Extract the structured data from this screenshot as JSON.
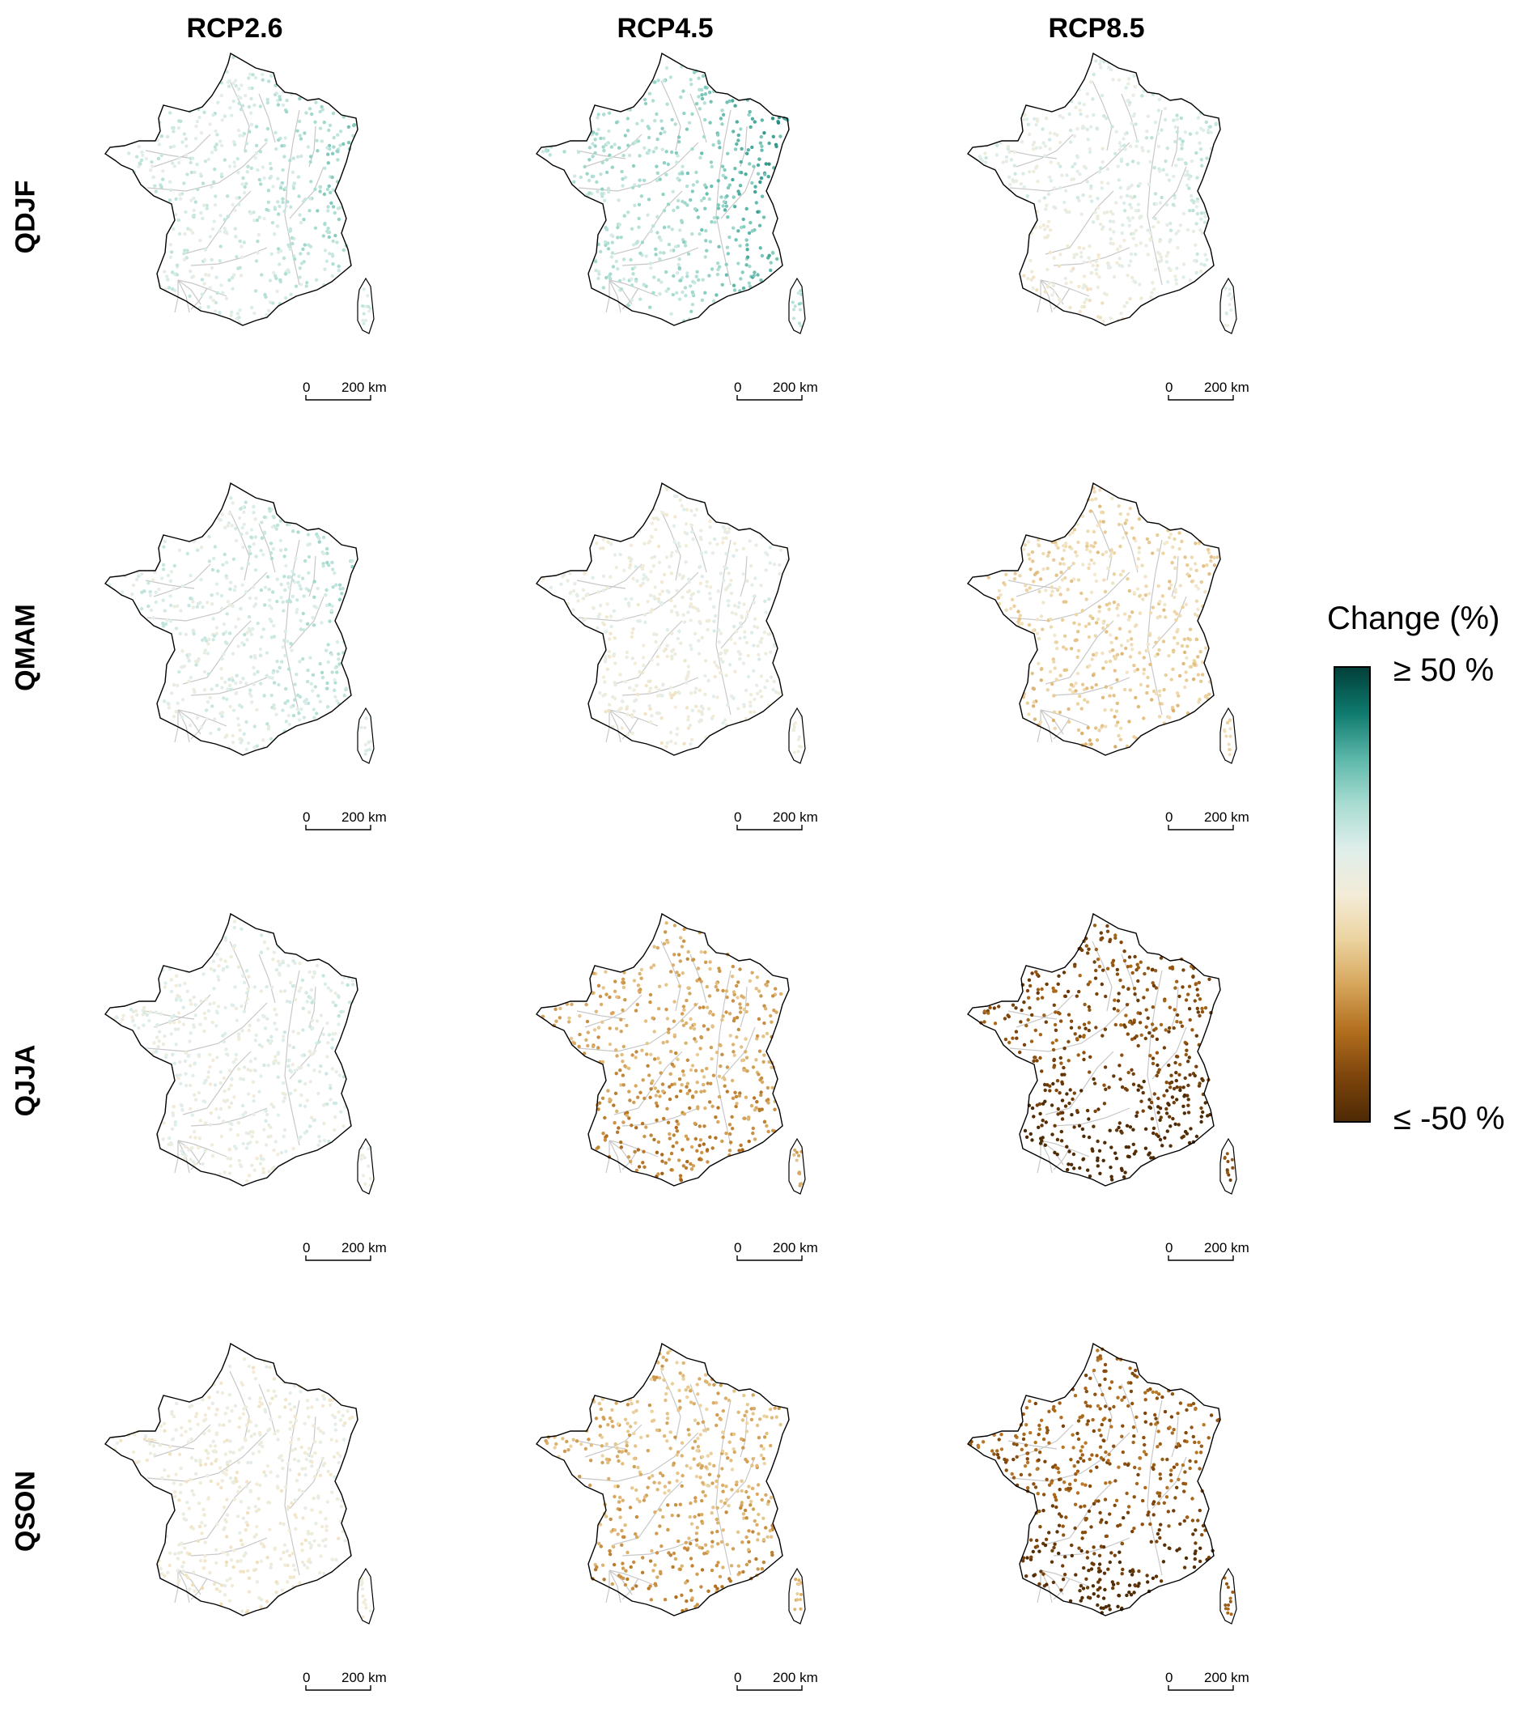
{
  "columns": [
    {
      "label": "RCP2.6"
    },
    {
      "label": "RCP4.5"
    },
    {
      "label": "RCP8.5"
    }
  ],
  "rows": [
    {
      "label": "QDJF"
    },
    {
      "label": "QMAM"
    },
    {
      "label": "QJJA"
    },
    {
      "label": "QSON"
    }
  ],
  "scale_bar": {
    "zero": "0",
    "distance": "200 km"
  },
  "legend": {
    "title": "Change (%)",
    "max_label": "≥ 50 %",
    "min_label": "≤ -50 %",
    "colors_top_to_bottom": [
      "#01403a",
      "#0f7a6e",
      "#5bb7a9",
      "#a8dcd1",
      "#dfeeeb",
      "#f3ecd8",
      "#ecd3a0",
      "#d6a55b",
      "#b26f1e",
      "#7e450c",
      "#4e2a05"
    ]
  },
  "map_colors": {
    "outline": "#000000",
    "river": "#c8c8c8",
    "background": "#ffffff"
  },
  "panel_mean_change_percent": [
    [
      12,
      18,
      8
    ],
    [
      10,
      4,
      -8
    ],
    [
      6,
      -18,
      -38
    ],
    [
      2,
      -16,
      -34
    ]
  ]
}
